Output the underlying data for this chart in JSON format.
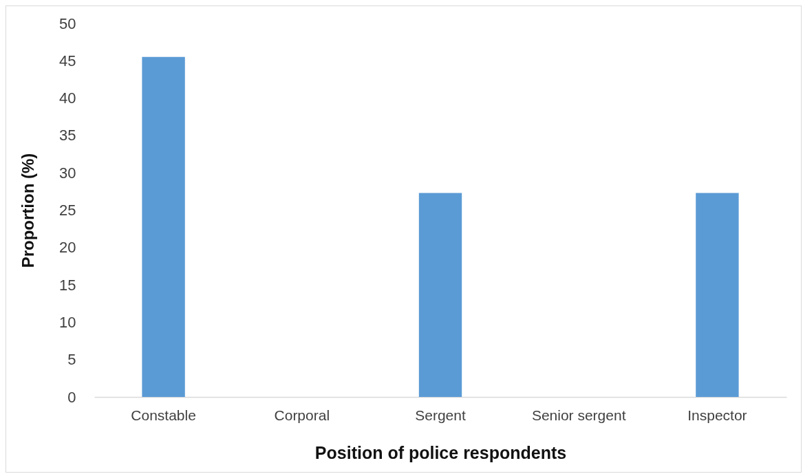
{
  "chart_data": {
    "type": "bar",
    "xlabel": "Position of police respondents",
    "ylabel": "Proportion (%)",
    "categories": [
      "Constable",
      "Corporal",
      "Sergent",
      "Senior sergent",
      "Inspector"
    ],
    "values": [
      45.5,
      0,
      27.3,
      0,
      27.3
    ],
    "color": "#5b9bd5",
    "ylim": [
      0,
      50
    ],
    "yticks": [
      0,
      5,
      10,
      15,
      20,
      25,
      30,
      35,
      40,
      45,
      50
    ]
  }
}
